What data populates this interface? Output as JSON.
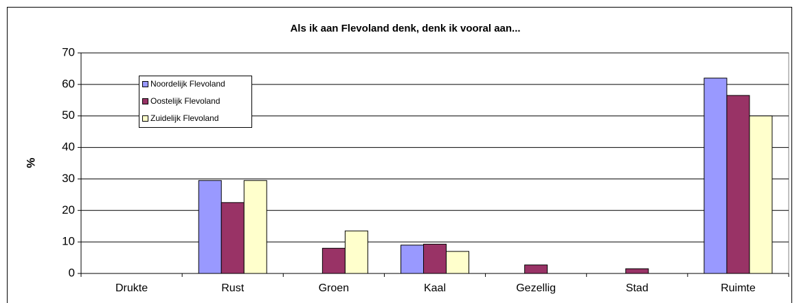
{
  "chart_data": {
    "type": "bar",
    "title": "Als ik aan Flevoland denk, denk ik vooral aan...",
    "ylabel": "%",
    "categories": [
      "Drukte",
      "Rust",
      "Groen",
      "Kaal",
      "Gezellig",
      "Stad",
      "Ruimte"
    ],
    "series": [
      {
        "name": "Noordelijk Flevoland",
        "color": "#9999ff",
        "values": [
          0,
          29.5,
          0,
          9,
          0,
          0,
          62
        ]
      },
      {
        "name": "Oostelijk Flevoland",
        "color": "#993366",
        "values": [
          0,
          22.5,
          8,
          9.3,
          2.7,
          1.5,
          56.5
        ]
      },
      {
        "name": "Zuidelijk Flevoland",
        "color": "#ffffcc",
        "values": [
          0,
          29.5,
          13.5,
          7,
          0,
          0,
          50
        ]
      }
    ],
    "ylim": [
      0,
      70
    ],
    "yticks": [
      0,
      10,
      20,
      30,
      40,
      50,
      60,
      70
    ],
    "grid": true,
    "legend": "upper left"
  }
}
